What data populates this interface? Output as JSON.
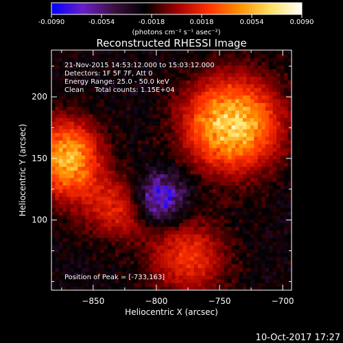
{
  "colorbar": {
    "ticks": [
      "-0.0090",
      "-0.0054",
      "-0.0018",
      "0.0018",
      "0.0054",
      "0.0090"
    ],
    "tick_values": [
      -0.009,
      -0.0054,
      -0.0018,
      0.0018,
      0.0054,
      0.009
    ],
    "range": [
      -0.009,
      0.009
    ],
    "units": "(photons cm⁻² s⁻¹ asec⁻²)",
    "colors": [
      "#0000ff",
      "#6a1ec8",
      "#3c1040",
      "#000000",
      "#a00000",
      "#ff3000",
      "#ff9000",
      "#ffe060",
      "#ffffff"
    ]
  },
  "chart_data": {
    "type": "heatmap",
    "title": "Reconstructed RHESSI Image",
    "xlabel": "Heliocentric X (arcsec)",
    "ylabel": "Heliocentric Y (arcsec)",
    "xlim": [
      -883,
      -693
    ],
    "ylim": [
      43,
      238
    ],
    "xticks": [
      -850,
      -800,
      -750,
      -700
    ],
    "yticks": [
      100,
      150,
      200
    ],
    "info_lines": [
      "21-Nov-2015 14:53:12.000 to 15:03:12.000",
      "Detectors: 1F 5F 7F, Att 0",
      "Energy Range: 25.0 - 50.0 keV",
      "Clean     Total counts: 1.15E+04"
    ],
    "peak_label": "Position of Peak = [-733,163]",
    "peak": [
      -733,
      163
    ],
    "sources": [
      {
        "x": -740,
        "y": 178,
        "sx": 26,
        "sy": 26,
        "amp": 0.0092
      },
      {
        "x": -870,
        "y": 150,
        "sx": 18,
        "sy": 22,
        "amp": 0.008
      },
      {
        "x": -775,
        "y": 70,
        "sx": 22,
        "sy": 22,
        "amp": 0.0045
      },
      {
        "x": -830,
        "y": 110,
        "sx": 20,
        "sy": 18,
        "amp": 0.004
      }
    ],
    "background": -0.0025,
    "min_region": {
      "x": -797,
      "y": 118,
      "amp": -0.006
    }
  },
  "timestamp": "10-Oct-2017 17:27"
}
